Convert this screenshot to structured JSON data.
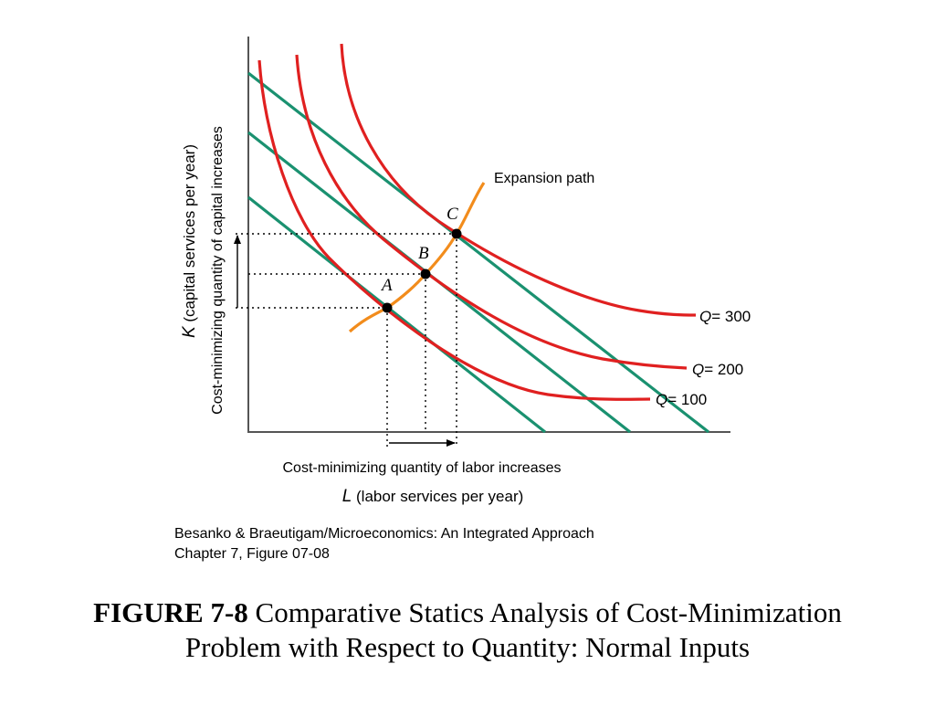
{
  "colors": {
    "isoquant": "#e02020",
    "isocost": "#1a9170",
    "expansion_path": "#f28c1c",
    "axis": "#555555",
    "dotted": "#000000"
  },
  "diagram": {
    "y_axis_label_var": "K",
    "y_axis_label_rest": " (capital services per year)",
    "y_axis_label_2": "Cost-minimizing quantity of capital increases",
    "x_axis_label_1": "Cost-minimizing quantity of labor increases",
    "x_axis_label_var": "L",
    "x_axis_label_rest": " (labor services per year)",
    "expansion_path_label": "Expansion path",
    "points": [
      {
        "letter": "A"
      },
      {
        "letter": "B"
      },
      {
        "letter": "C"
      }
    ],
    "isoquants": [
      {
        "var": "Q",
        "value": "= 100"
      },
      {
        "var": "Q",
        "value": "= 200"
      },
      {
        "var": "Q",
        "value": "= 300"
      }
    ]
  },
  "source": {
    "line1": "Besanko & Braeutigam/Microeconomics: An Integrated Approach",
    "line2": "Chapter 7, Figure 07-08"
  },
  "caption": {
    "prefix": "FIGURE 7-8",
    "line1": " Comparative Statics Analysis of Cost-Minimization",
    "line2": "Problem with Respect to Quantity: Normal Inputs"
  }
}
